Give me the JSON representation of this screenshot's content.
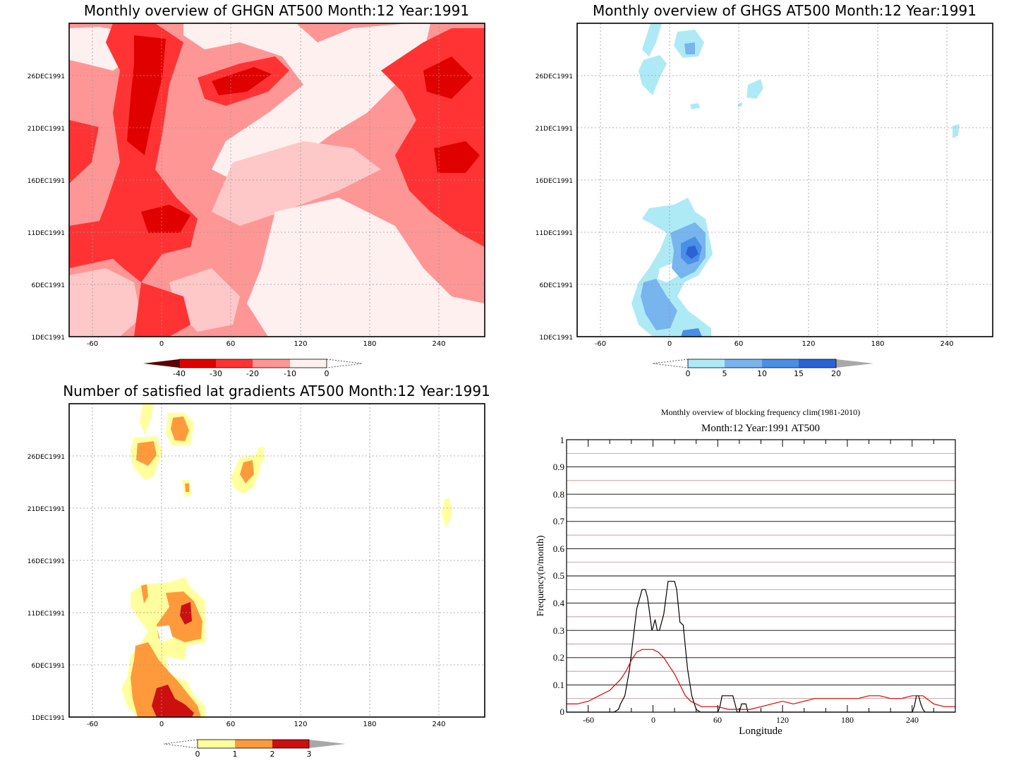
{
  "colors": {
    "ghgn_fills": [
      "#e00000",
      "#ff3333",
      "#ff9696",
      "#ffc8c8",
      "#fff0f0"
    ],
    "ghgs_fills": [
      "#aeeaf6",
      "#78b4ee",
      "#4a8fe6",
      "#2a63d6",
      "#1e40b4"
    ],
    "count_fills": [
      "#ffff9e",
      "#ff9a3c",
      "#cc1010"
    ],
    "freq_black": "#000000",
    "freq_red": "#e00000",
    "gridline": "#aaaaaa"
  },
  "chart_data": [
    {
      "id": "ghgn",
      "type": "heatmap",
      "title": "Monthly overview of GHGN AT500 Month:12 Year:1991",
      "xlabel": "",
      "ylabel": "",
      "x_ticks": [
        "-60",
        "0",
        "60",
        "120",
        "180",
        "240"
      ],
      "y_ticks": [
        "1DEC1991",
        "6DEC1991",
        "11DEC1991",
        "16DEC1991",
        "21DEC1991",
        "26DEC1991"
      ],
      "colorbar": {
        "labels": [
          "-40",
          "-30",
          "-20",
          "-10",
          "0"
        ]
      }
    },
    {
      "id": "ghgs",
      "type": "heatmap",
      "title": "Monthly overview of GHGS AT500 Month:12 Year:1991",
      "xlabel": "",
      "ylabel": "",
      "x_ticks": [
        "-60",
        "0",
        "60",
        "120",
        "180",
        "240"
      ],
      "y_ticks": [
        "1DEC1991",
        "6DEC1991",
        "11DEC1991",
        "16DEC1991",
        "21DEC1991",
        "26DEC1991"
      ],
      "colorbar": {
        "labels": [
          "0",
          "5",
          "10",
          "15",
          "20"
        ]
      }
    },
    {
      "id": "count",
      "type": "heatmap",
      "title": "Number of satisfied lat gradients AT500 Month:12 Year:1991",
      "xlabel": "",
      "ylabel": "",
      "x_ticks": [
        "-60",
        "0",
        "60",
        "120",
        "180",
        "240"
      ],
      "y_ticks": [
        "1DEC1991",
        "6DEC1991",
        "11DEC1991",
        "16DEC1991",
        "21DEC1991",
        "26DEC1991"
      ],
      "colorbar": {
        "labels": [
          "0",
          "1",
          "2",
          "3"
        ]
      }
    },
    {
      "id": "freq",
      "type": "line",
      "title": "Monthly overview of blocking frequency clim(1981-2010)",
      "subtitle": "Month:12 Year:1991  AT500",
      "xlabel": "Longitude",
      "ylabel": "Frequency(n/month)",
      "xlim": [
        -80,
        280
      ],
      "ylim": [
        0,
        1
      ],
      "x_ticks": [
        "-60",
        "0",
        "60",
        "120",
        "180",
        "240"
      ],
      "y_ticks": [
        "0",
        "0.1",
        "0.2",
        "0.3",
        "0.4",
        "0.5",
        "0.6",
        "0.7",
        "0.8",
        "0.9",
        "1"
      ],
      "series": [
        {
          "color": "#000000",
          "x": [
            -80,
            -36,
            -32,
            -30,
            -26,
            -22,
            -18,
            -15,
            -10,
            -7,
            -5,
            -3,
            -1,
            0,
            2,
            4,
            6,
            10,
            14,
            18,
            20,
            22,
            25,
            28,
            32,
            36,
            40,
            44,
            60,
            62,
            64,
            70,
            74,
            76,
            78,
            80,
            82,
            84,
            86,
            88,
            90,
            240,
            242,
            244,
            246,
            248,
            250,
            252,
            254,
            280
          ],
          "y": [
            0,
            0,
            0.01,
            0.03,
            0.06,
            0.15,
            0.28,
            0.38,
            0.45,
            0.45,
            0.42,
            0.36,
            0.3,
            0.31,
            0.34,
            0.3,
            0.3,
            0.36,
            0.48,
            0.48,
            0.48,
            0.45,
            0.33,
            0.32,
            0.16,
            0.06,
            0.01,
            0,
            0,
            0.02,
            0.06,
            0.06,
            0.06,
            0.03,
            0,
            0,
            0.03,
            0.03,
            0.03,
            0,
            0,
            0,
            0.02,
            0.06,
            0.06,
            0.03,
            0.01,
            0,
            0,
            0
          ]
        },
        {
          "color": "#e00000",
          "x": [
            -80,
            -70,
            -60,
            -50,
            -40,
            -30,
            -25,
            -20,
            -15,
            -10,
            -5,
            0,
            5,
            10,
            15,
            20,
            25,
            30,
            35,
            40,
            45,
            50,
            60,
            70,
            80,
            90,
            100,
            110,
            120,
            130,
            140,
            150,
            160,
            170,
            180,
            190,
            200,
            210,
            220,
            230,
            240,
            250,
            260,
            270,
            280
          ],
          "y": [
            0.03,
            0.03,
            0.04,
            0.06,
            0.08,
            0.12,
            0.15,
            0.19,
            0.22,
            0.23,
            0.23,
            0.23,
            0.22,
            0.2,
            0.17,
            0.14,
            0.1,
            0.06,
            0.04,
            0.03,
            0.02,
            0.02,
            0.02,
            0.01,
            0.01,
            0.01,
            0.02,
            0.03,
            0.04,
            0.03,
            0.04,
            0.05,
            0.05,
            0.05,
            0.05,
            0.05,
            0.06,
            0.06,
            0.05,
            0.05,
            0.06,
            0.06,
            0.03,
            0.02,
            0.02
          ]
        }
      ],
      "grid": true
    }
  ]
}
